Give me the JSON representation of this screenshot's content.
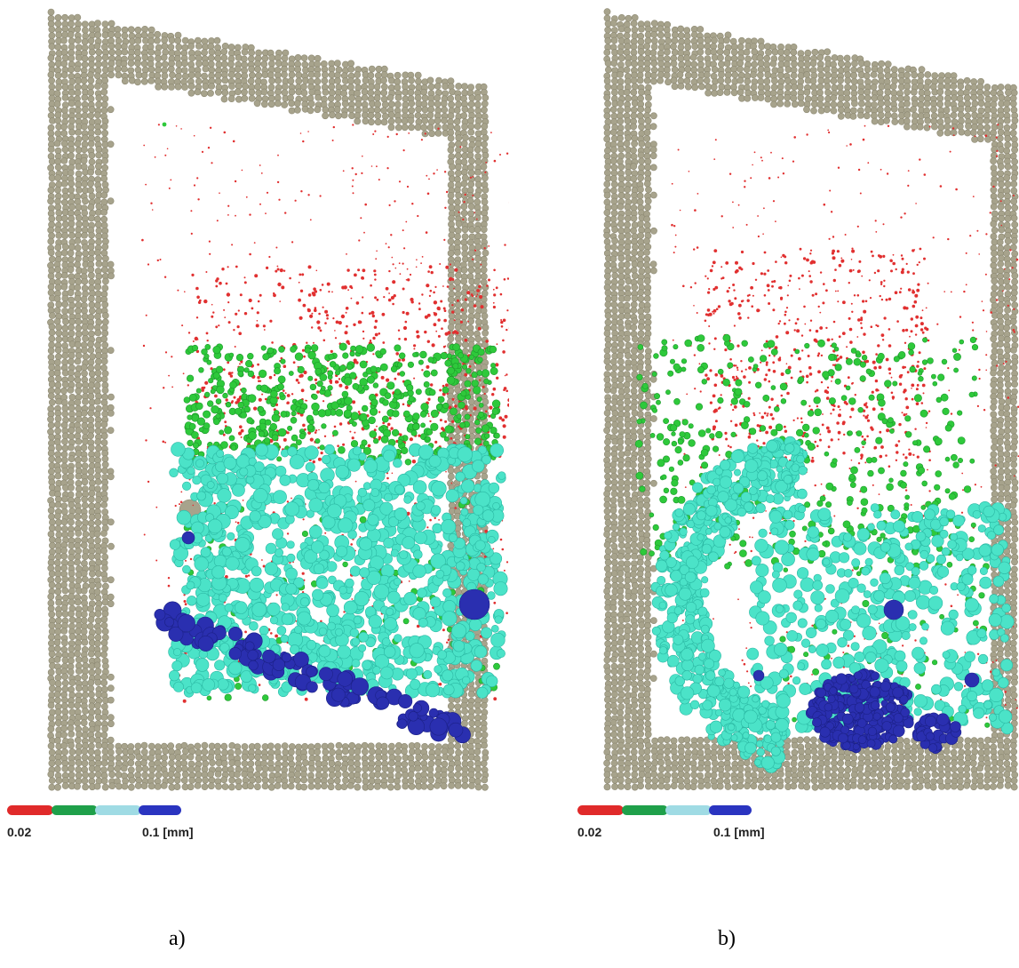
{
  "panels": [
    {
      "id": "a",
      "caption": "a)",
      "legend": {
        "min_label": "0.02",
        "max_label": "0.1 [mm]"
      },
      "variant": "flat"
    },
    {
      "id": "b",
      "caption": "b)",
      "legend": {
        "min_label": "0.02",
        "max_label": "0.1 [mm]"
      },
      "variant": "rounded"
    }
  ],
  "legend_colors": [
    "#e02a2a",
    "#1fa04a",
    "#9fdbe4",
    "#2a34c0"
  ],
  "particle_colors": {
    "frame": "#a7a38c",
    "tiny": "#e13030",
    "small": "#2ec93b",
    "medium": "#4be3c8",
    "large": "#2a2fb0"
  }
}
